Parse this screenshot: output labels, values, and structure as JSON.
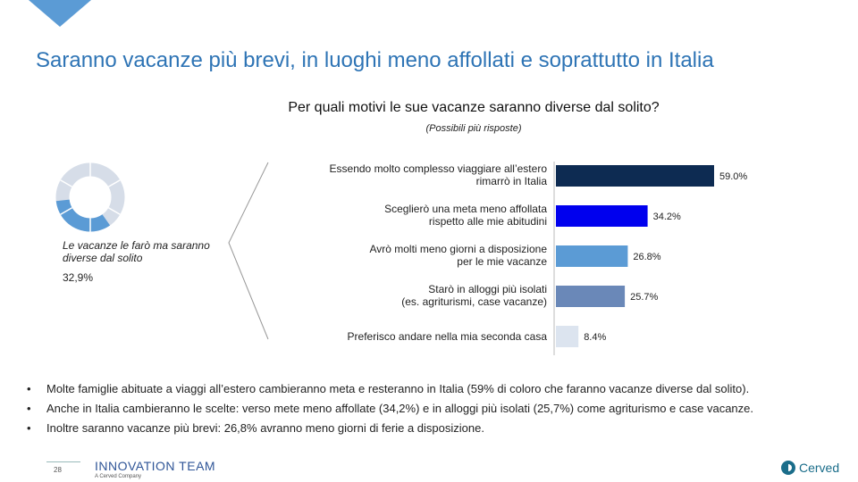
{
  "title": "Saranno vacanze più brevi, in luoghi meno affollati e soprattutto in Italia",
  "chart_data": {
    "type": "bar",
    "orientation": "horizontal",
    "title": "Per quali motivi le sue vacanze saranno diverse dal solito?",
    "subtitle": "(Possibili più risposte)",
    "categories": [
      [
        "Essendo molto complesso viaggiare all’estero",
        "rimarrò in Italia"
      ],
      [
        "Sceglierò una meta meno affollata",
        "rispetto alle mie abitudini"
      ],
      [
        "Avrò molti meno giorni a disposizione",
        "per le mie vacanze"
      ],
      [
        "Starò in alloggi più isolati",
        "(es. agriturismi, case vacanze)"
      ],
      [
        "Preferisco andare nella mia seconda casa"
      ]
    ],
    "values": [
      59.0,
      34.2,
      26.8,
      25.7,
      8.4
    ],
    "value_labels": [
      "59.0%",
      "34.2%",
      "26.8%",
      "25.7%",
      "8.4%"
    ],
    "colors": [
      "#0d2b52",
      "#0000ee",
      "#5b9bd5",
      "#6a88b8",
      "#dce4ef"
    ],
    "xlim": [
      0,
      60
    ]
  },
  "donut": {
    "label": "Le vacanze le farò ma saranno diverse dal solito",
    "value": 32.9,
    "value_label": "32,9%",
    "highlight_color": "#5b9bd5",
    "rest_color": "#d6dde8"
  },
  "bullets": [
    "Molte famiglie abituate a viaggi all’estero cambieranno meta e resteranno in Italia (59% di coloro che faranno vacanze diverse dal solito).",
    "Anche in Italia cambieranno le scelte: verso mete meno affollate (34,2%) e in alloggi più isolati (25,7%) come agriturismo e case vacanze.",
    "Inoltre saranno vacanze più brevi: 26,8% avranno meno giorni di ferie a disposizione."
  ],
  "footer": {
    "page_number": "28",
    "logo": "INNOVATION TEAM",
    "logo_sub": "A Cerved Company",
    "brand": "Cerved"
  }
}
